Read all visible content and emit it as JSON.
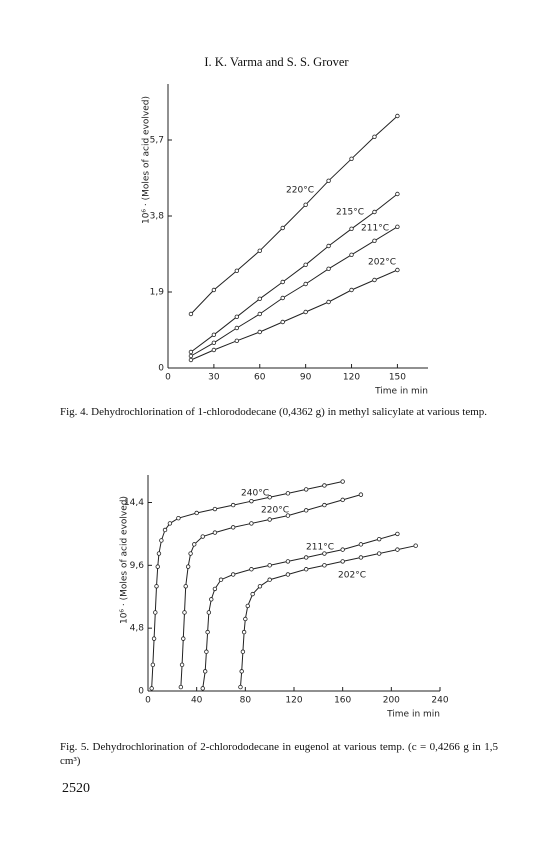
{
  "header": "I. K. Varma and S. S. Grover",
  "chart_data": [
    {
      "type": "line",
      "y_label": "10⁶ · (Moles of acid evolved)",
      "x_label": "Time in min",
      "xlim": [
        0,
        170
      ],
      "ylim": [
        0,
        7.1
      ],
      "xticks": [
        0,
        30,
        60,
        90,
        120,
        150
      ],
      "yticks": [
        0,
        {
          "value": 1.9,
          "label": "1,9"
        },
        {
          "value": 3.8,
          "label": "3,8"
        },
        {
          "value": 5.7,
          "label": "5,7"
        }
      ],
      "x": [
        15,
        30,
        45,
        60,
        75,
        90,
        105,
        120,
        135,
        150
      ],
      "series": [
        {
          "name": "220°C",
          "color": "#222222",
          "values": [
            1.35,
            1.95,
            2.43,
            2.93,
            3.5,
            4.08,
            4.68,
            5.23,
            5.78,
            6.3
          ]
        },
        {
          "name": "215°C",
          "color": "#222222",
          "values": [
            0.4,
            0.83,
            1.28,
            1.73,
            2.15,
            2.58,
            3.05,
            3.48,
            3.9,
            4.35
          ]
        },
        {
          "name": "211°C",
          "color": "#222222",
          "values": [
            0.3,
            0.63,
            1.0,
            1.35,
            1.75,
            2.1,
            2.48,
            2.83,
            3.18,
            3.53
          ]
        },
        {
          "name": "202°C",
          "color": "#222222",
          "values": [
            0.2,
            0.45,
            0.68,
            0.9,
            1.15,
            1.4,
            1.65,
            1.95,
            2.2,
            2.45
          ]
        }
      ]
    },
    {
      "type": "line",
      "y_label": "10⁶ · (Moles of acid evolved)",
      "x_label": "Time in min",
      "xlim": [
        0,
        240
      ],
      "ylim": [
        0,
        16.5
      ],
      "xticks": [
        0,
        40,
        80,
        120,
        160,
        200,
        240
      ],
      "yticks": [
        0,
        {
          "value": 4.8,
          "label": "4,8"
        },
        {
          "value": 9.6,
          "label": "9,6"
        },
        {
          "value": 14.4,
          "label": "14,4"
        }
      ],
      "series": [
        {
          "name": "240°C",
          "color": "#222222",
          "x": [
            3,
            4,
            5,
            6,
            7,
            8,
            9,
            11,
            14,
            18,
            25,
            40,
            55,
            70,
            85,
            100,
            115,
            130,
            145,
            160
          ],
          "values": [
            0.2,
            2,
            4,
            6,
            8,
            9.5,
            10.5,
            11.5,
            12.3,
            12.8,
            13.2,
            13.6,
            13.9,
            14.2,
            14.5,
            14.8,
            15.1,
            15.4,
            15.7,
            16.0
          ]
        },
        {
          "name": "220°C",
          "color": "#222222",
          "x": [
            27,
            28,
            29,
            30,
            31,
            33,
            35,
            38,
            45,
            55,
            70,
            85,
            100,
            115,
            130,
            145,
            160,
            175
          ],
          "values": [
            0.3,
            2,
            4,
            6,
            8,
            9.5,
            10.5,
            11.2,
            11.8,
            12.1,
            12.5,
            12.8,
            13.1,
            13.4,
            13.8,
            14.2,
            14.6,
            15.0
          ]
        },
        {
          "name": "211°C",
          "color": "#222222",
          "x": [
            45,
            47,
            48,
            49,
            50,
            52,
            55,
            60,
            70,
            85,
            100,
            115,
            130,
            145,
            160,
            175,
            190,
            205
          ],
          "values": [
            0.2,
            1.5,
            3,
            4.5,
            6,
            7,
            7.8,
            8.5,
            8.9,
            9.3,
            9.6,
            9.9,
            10.2,
            10.5,
            10.8,
            11.2,
            11.6,
            12
          ]
        },
        {
          "name": "202°C",
          "color": "#222222",
          "x": [
            76,
            77,
            78,
            79,
            80,
            82,
            86,
            92,
            100,
            115,
            130,
            145,
            160,
            175,
            190,
            205,
            220
          ],
          "values": [
            0.3,
            1.5,
            3,
            4.5,
            5.5,
            6.5,
            7.4,
            8,
            8.5,
            8.9,
            9.3,
            9.6,
            9.9,
            10.2,
            10.5,
            10.8,
            11.1
          ]
        }
      ]
    }
  ],
  "captions": [
    "Fig. 4.  Dehydrochlorination of 1-chlorododecane (0,4362 g) in methyl salicylate at various temp.",
    "Fig. 5.  Dehydrochlorination of 2-chlorododecane in eugenol at various temp. (c = 0,4266 g in 1,5 cm³)"
  ],
  "page_number": "2520"
}
